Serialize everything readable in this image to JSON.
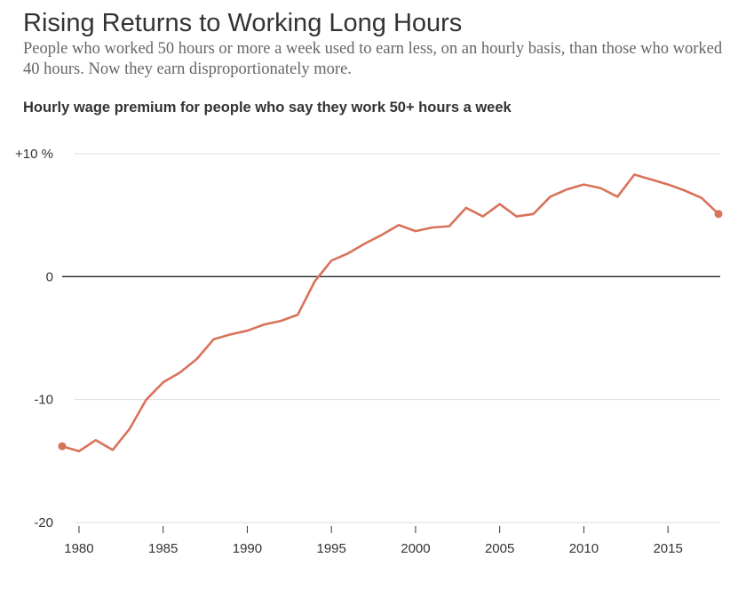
{
  "chart_data": {
    "type": "line",
    "title": "Rising Returns to Working Long Hours",
    "subtitle": "People who worked 50 hours or more a week used to earn less, on an hourly basis, than those who worked 40 hours. Now they earn disproportionately more.",
    "y_label": "Hourly wage premium for people who say they work 50+ hours a week",
    "x": [
      1979,
      1980,
      1981,
      1982,
      1983,
      1984,
      1985,
      1986,
      1987,
      1988,
      1989,
      1990,
      1991,
      1992,
      1993,
      1994,
      1995,
      1996,
      1997,
      1998,
      1999,
      2000,
      2001,
      2002,
      2003,
      2004,
      2005,
      2006,
      2007,
      2008,
      2009,
      2010,
      2011,
      2012,
      2013,
      2014,
      2015,
      2016,
      2017,
      2018
    ],
    "series": [
      {
        "color": "#d9725a",
        "values": [
          -13.8,
          -14.2,
          -13.3,
          -14.1,
          -12.4,
          -10.0,
          -8.6,
          -7.8,
          -6.7,
          -5.1,
          -4.7,
          -4.4,
          -3.9,
          -3.6,
          -3.1,
          -0.4,
          1.3,
          1.9,
          2.7,
          3.4,
          4.2,
          3.7,
          4.0,
          4.1,
          5.6,
          4.9,
          5.9,
          4.9,
          5.1,
          6.5,
          7.1,
          7.5,
          7.2,
          6.5,
          8.3,
          7.9,
          7.5,
          7.0,
          6.4,
          5.1
        ]
      }
    ],
    "xlim": [
      1979,
      2018
    ],
    "xticks": [
      1980,
      1985,
      1990,
      1995,
      2000,
      2005,
      2010,
      2015
    ],
    "ylim": [
      -20,
      10
    ],
    "yticks": [
      {
        "value": 10,
        "label": "+10 %"
      },
      0,
      -10,
      -20
    ],
    "grid": true,
    "endpoint_markers": true
  }
}
